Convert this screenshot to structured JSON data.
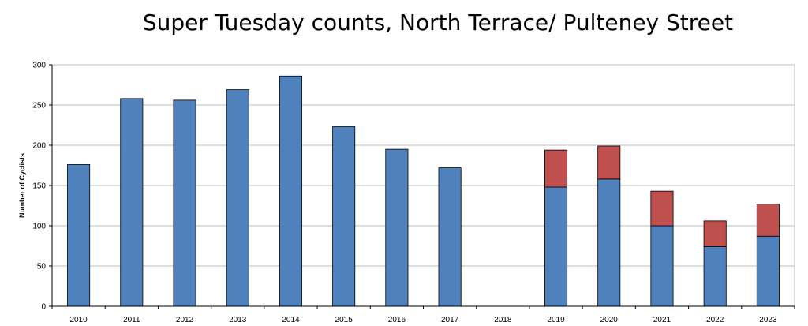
{
  "chart_data": {
    "type": "bar",
    "stacked": true,
    "title": "Super Tuesday counts, North Terrace/ Pulteney Street",
    "xlabel": "",
    "ylabel": "Number of Cyclists",
    "ylim": [
      0,
      300
    ],
    "yticks": [
      0,
      50,
      100,
      150,
      200,
      250,
      300
    ],
    "grid": true,
    "legend": "none",
    "categories": [
      "2010",
      "2011",
      "2012",
      "2013",
      "2014",
      "2015",
      "2016",
      "2017",
      "2018",
      "2019",
      "2020",
      "2021",
      "2022",
      "2023"
    ],
    "series": [
      {
        "color": "#4f81bd",
        "values": [
          176,
          258,
          256,
          269,
          286,
          223,
          195,
          172,
          null,
          148,
          158,
          100,
          74,
          87
        ]
      },
      {
        "color": "#c0504d",
        "values": [
          null,
          null,
          null,
          null,
          null,
          null,
          null,
          null,
          null,
          46,
          41,
          43,
          32,
          40
        ]
      }
    ]
  }
}
